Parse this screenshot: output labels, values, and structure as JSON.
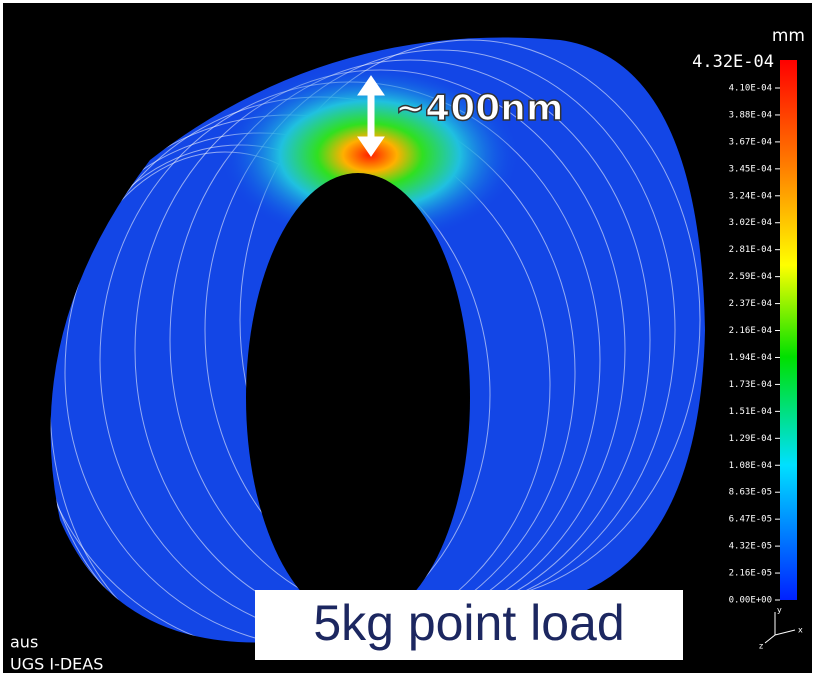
{
  "units": "mm",
  "scale": {
    "max_label": "4.32E-04",
    "labels": [
      "4.10E-04",
      "3.88E-04",
      "3.67E-04",
      "3.45E-04",
      "3.24E-04",
      "3.02E-04",
      "2.81E-04",
      "2.59E-04",
      "2.37E-04",
      "2.16E-04",
      "1.94E-04",
      "1.73E-04",
      "1.51E-04",
      "1.29E-04",
      "1.08E-04",
      "8.63E-05",
      "6.47E-05",
      "4.32E-05",
      "2.16E-05",
      "0.00E+00"
    ]
  },
  "annotation": "~400nm",
  "caption": "5kg point load",
  "footer": {
    "model": "aus",
    "software": "UGS I-DEAS"
  },
  "triad": {
    "y": "y",
    "z": "z",
    "x": "x"
  }
}
